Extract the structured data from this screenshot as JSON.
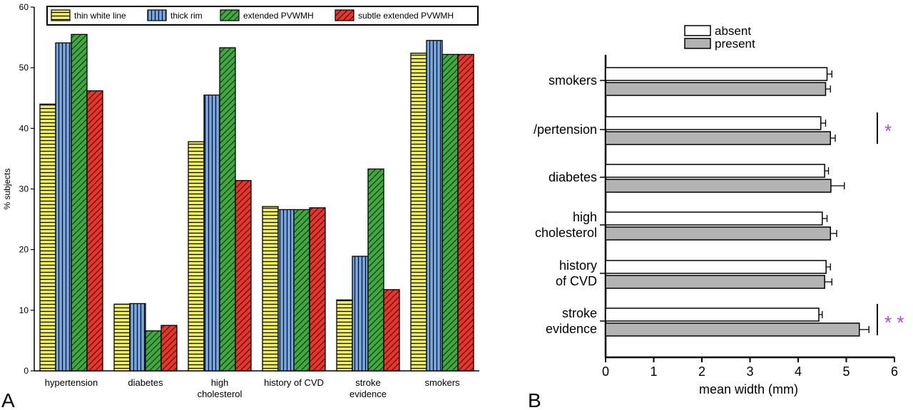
{
  "panels": {
    "a": "A",
    "b": "B"
  },
  "chart_data": [
    {
      "type": "bar",
      "ylabel": "% subjects",
      "xlabel": "",
      "ylim": [
        0,
        60
      ],
      "yticks": [
        0,
        10,
        20,
        30,
        40,
        50,
        60
      ],
      "legend_position": "top",
      "categories": [
        "hypertension",
        "diabetes",
        "high\ncholesterol",
        "history of CVD",
        "stroke\nevidence",
        "smokers"
      ],
      "series": [
        {
          "name": "thin white line",
          "color": "#f0ee5a",
          "pattern": "horizontal-lines",
          "values": [
            44.0,
            11.0,
            37.8,
            27.1,
            11.7,
            52.4
          ]
        },
        {
          "name": "thick rim",
          "color": "#6ea9e8",
          "pattern": "vertical-lines",
          "values": [
            54.1,
            11.1,
            45.5,
            26.6,
            18.9,
            54.5
          ]
        },
        {
          "name": "extended PVWMH",
          "color": "#3fa83f",
          "pattern": "diagonal-lines",
          "values": [
            55.5,
            6.6,
            53.3,
            26.6,
            33.3,
            52.2
          ]
        },
        {
          "name": "subtle extended PVWMH",
          "color": "#e8352b",
          "pattern": "diagonal-lines",
          "values": [
            46.2,
            7.5,
            31.4,
            26.9,
            13.4,
            52.2
          ]
        }
      ]
    },
    {
      "type": "bar",
      "orientation": "horizontal",
      "xlabel": "mean width (mm)",
      "ylabel": "",
      "xlim": [
        0,
        6
      ],
      "xticks": [
        0,
        1,
        2,
        3,
        4,
        5,
        6
      ],
      "legend_position": "top",
      "categories": [
        "smokers",
        "/pertension",
        "diabetes",
        "high\ncholesterol",
        "history\nof CVD",
        "stroke\nevidence"
      ],
      "series": [
        {
          "name": "absent",
          "color": "#ffffff",
          "values": [
            4.6,
            4.47,
            4.55,
            4.5,
            4.58,
            4.43
          ],
          "errors": [
            0.1,
            0.1,
            0.08,
            0.1,
            0.09,
            0.07
          ]
        },
        {
          "name": "present",
          "color": "#b3b3b3",
          "values": [
            4.57,
            4.67,
            4.68,
            4.67,
            4.55,
            5.27
          ],
          "errors": [
            0.1,
            0.1,
            0.28,
            0.13,
            0.15,
            0.2
          ]
        }
      ],
      "significance": [
        {
          "category": "/pertension",
          "label": "*"
        },
        {
          "category": "stroke\nevidence",
          "label": "* *"
        }
      ]
    }
  ]
}
